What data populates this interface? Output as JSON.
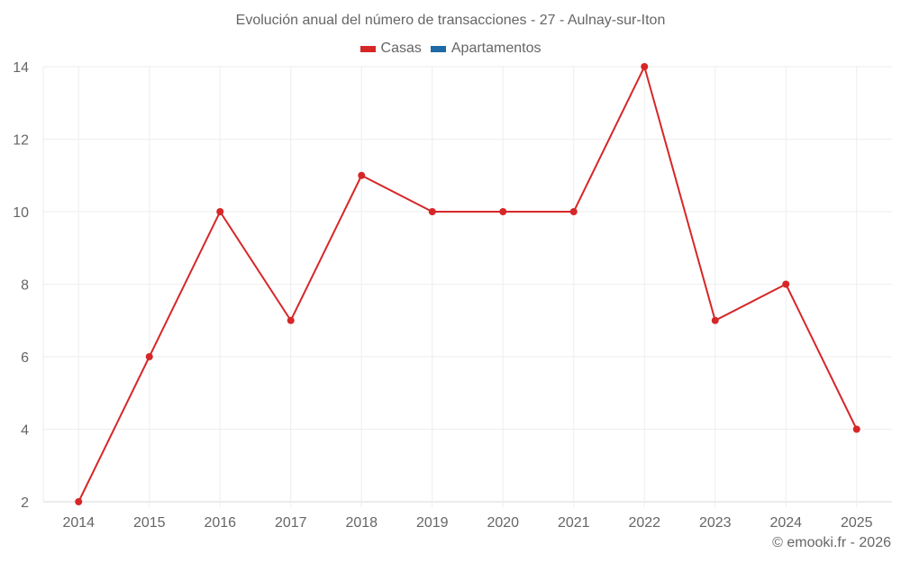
{
  "chart_data": {
    "type": "line",
    "title": "Evolución anual del número de transacciones - 27 - Aulnay-sur-Iton",
    "xlabel": "",
    "ylabel": "",
    "categories": [
      "2014",
      "2015",
      "2016",
      "2017",
      "2018",
      "2019",
      "2020",
      "2021",
      "2022",
      "2023",
      "2024",
      "2025"
    ],
    "series": [
      {
        "name": "Casas",
        "color": "#d62728",
        "values": [
          2,
          6,
          10,
          7,
          11,
          10,
          10,
          10,
          14,
          7,
          8,
          4
        ]
      },
      {
        "name": "Apartamentos",
        "color": "#1f6aa5",
        "values": []
      }
    ],
    "ylim": [
      2,
      14
    ],
    "yticks": [
      2,
      4,
      6,
      8,
      10,
      12,
      14
    ],
    "grid": true,
    "legend_position": "top"
  },
  "header": {
    "title": "Evolución anual del número de transacciones - 27 - Aulnay-sur-Iton"
  },
  "legend": {
    "items": [
      {
        "label": "Casas",
        "color": "#d62728"
      },
      {
        "label": "Apartamentos",
        "color": "#1f6aa5"
      }
    ]
  },
  "footer": {
    "credit": "© emooki.fr - 2026"
  }
}
